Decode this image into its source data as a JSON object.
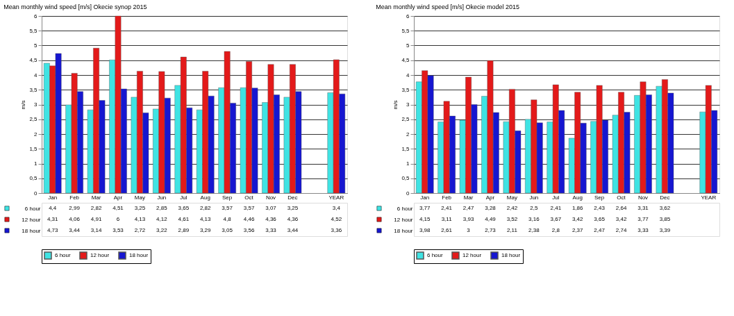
{
  "chart_data": [
    {
      "type": "bar",
      "title": "Mean monthly wind speed [m/s] Okecie synop 2015",
      "ylabel": "m/s",
      "categories": [
        "Jan",
        "Feb",
        "Mar",
        "Apr",
        "May",
        "Jun",
        "Jul",
        "Aug",
        "Sep",
        "Oct",
        "Nov",
        "Dec",
        null,
        "YEAR"
      ],
      "series": [
        {
          "name": "6 hour",
          "color": "#3fe3e3",
          "values": [
            4.4,
            2.99,
            2.82,
            4.51,
            3.25,
            2.85,
            3.65,
            2.82,
            3.57,
            3.57,
            3.07,
            3.25,
            null,
            3.4
          ],
          "value_labels": [
            "4,4",
            "2,99",
            "2,82",
            "4,51",
            "3,25",
            "2,85",
            "3,65",
            "2,82",
            "3,57",
            "3,57",
            "3,07",
            "3,25",
            null,
            "3,4"
          ]
        },
        {
          "name": "12 hour",
          "color": "#e31a1a",
          "values": [
            4.31,
            4.06,
            4.91,
            6,
            4.13,
            4.12,
            4.61,
            4.13,
            4.8,
            4.46,
            4.36,
            4.36,
            null,
            4.52
          ],
          "value_labels": [
            "4,31",
            "4,06",
            "4,91",
            "6",
            "4,13",
            "4,12",
            "4,61",
            "4,13",
            "4,8",
            "4,46",
            "4,36",
            "4,36",
            null,
            "4,52"
          ]
        },
        {
          "name": "18 hour",
          "color": "#1616d0",
          "values": [
            4.73,
            3.44,
            3.14,
            3.53,
            2.72,
            3.22,
            2.89,
            3.29,
            3.05,
            3.56,
            3.33,
            3.44,
            null,
            3.36
          ],
          "value_labels": [
            "4,73",
            "3,44",
            "3,14",
            "3,53",
            "2,72",
            "3,22",
            "2,89",
            "3,29",
            "3,05",
            "3,56",
            "3,33",
            "3,44",
            null,
            "3,36"
          ]
        }
      ],
      "ylim": [
        0,
        6
      ],
      "yticks": [
        0,
        {
          "value": 0.5,
          "label": "0,5"
        },
        1,
        {
          "value": 1.5,
          "label": "1,5"
        },
        2,
        {
          "value": 2.5,
          "label": "2,5"
        },
        3,
        {
          "value": 3.5,
          "label": "3,5"
        },
        4,
        {
          "value": 4.5,
          "label": "4,5"
        },
        5,
        {
          "value": 5.5,
          "label": "5,5"
        },
        6
      ],
      "grid": "y",
      "legend": "bottom"
    },
    {
      "type": "bar",
      "title": "Mean monthly wind speed [m/s] Okecie model 2015",
      "ylabel": "m/s",
      "categories": [
        "Jan",
        "Feb",
        "Mar",
        "Apr",
        "May",
        "Jun",
        "Jul",
        "Aug",
        "Sep",
        "Oct",
        "Nov",
        "Dec",
        null,
        "YEAR"
      ],
      "series": [
        {
          "name": "6 hour",
          "color": "#3fe3e3",
          "values": [
            3.77,
            2.41,
            2.47,
            3.28,
            2.42,
            2.5,
            2.41,
            1.86,
            2.43,
            2.64,
            3.31,
            3.62,
            null,
            2.75
          ],
          "value_labels": [
            "3,77",
            "2,41",
            "2,47",
            "3,28",
            "2,42",
            "2,5",
            "2,41",
            "1,86",
            "2,43",
            "2,64",
            "3,31",
            "3,62",
            null,
            null
          ]
        },
        {
          "name": "12 hour",
          "color": "#e31a1a",
          "values": [
            4.15,
            3.11,
            3.93,
            4.49,
            3.52,
            3.16,
            3.67,
            3.42,
            3.65,
            3.42,
            3.77,
            3.85,
            null,
            3.65
          ],
          "value_labels": [
            "4,15",
            "3,11",
            "3,93",
            "4,49",
            "3,52",
            "3,16",
            "3,67",
            "3,42",
            "3,65",
            "3,42",
            "3,77",
            "3,85",
            null,
            null
          ]
        },
        {
          "name": "18 hour",
          "color": "#1616d0",
          "values": [
            3.98,
            2.61,
            3,
            2.73,
            2.11,
            2.38,
            2.8,
            2.37,
            2.47,
            2.74,
            3.33,
            3.39,
            null,
            2.8
          ],
          "value_labels": [
            "3,98",
            "2,61",
            "3",
            "2,73",
            "2,11",
            "2,38",
            "2,8",
            "2,37",
            "2,47",
            "2,74",
            "3,33",
            "3,39",
            null,
            null
          ]
        }
      ],
      "ylim": [
        0,
        6
      ],
      "yticks": [
        0,
        {
          "value": 0.5,
          "label": "0,5"
        },
        1,
        {
          "value": 1.5,
          "label": "1,5"
        },
        2,
        {
          "value": 2.5,
          "label": "2,5"
        },
        3,
        {
          "value": 3.5,
          "label": "3,5"
        },
        4,
        {
          "value": 4.5,
          "label": "4,5"
        },
        5,
        {
          "value": 5.5,
          "label": "5,5"
        },
        6
      ],
      "grid": "y",
      "legend": "bottom"
    }
  ]
}
